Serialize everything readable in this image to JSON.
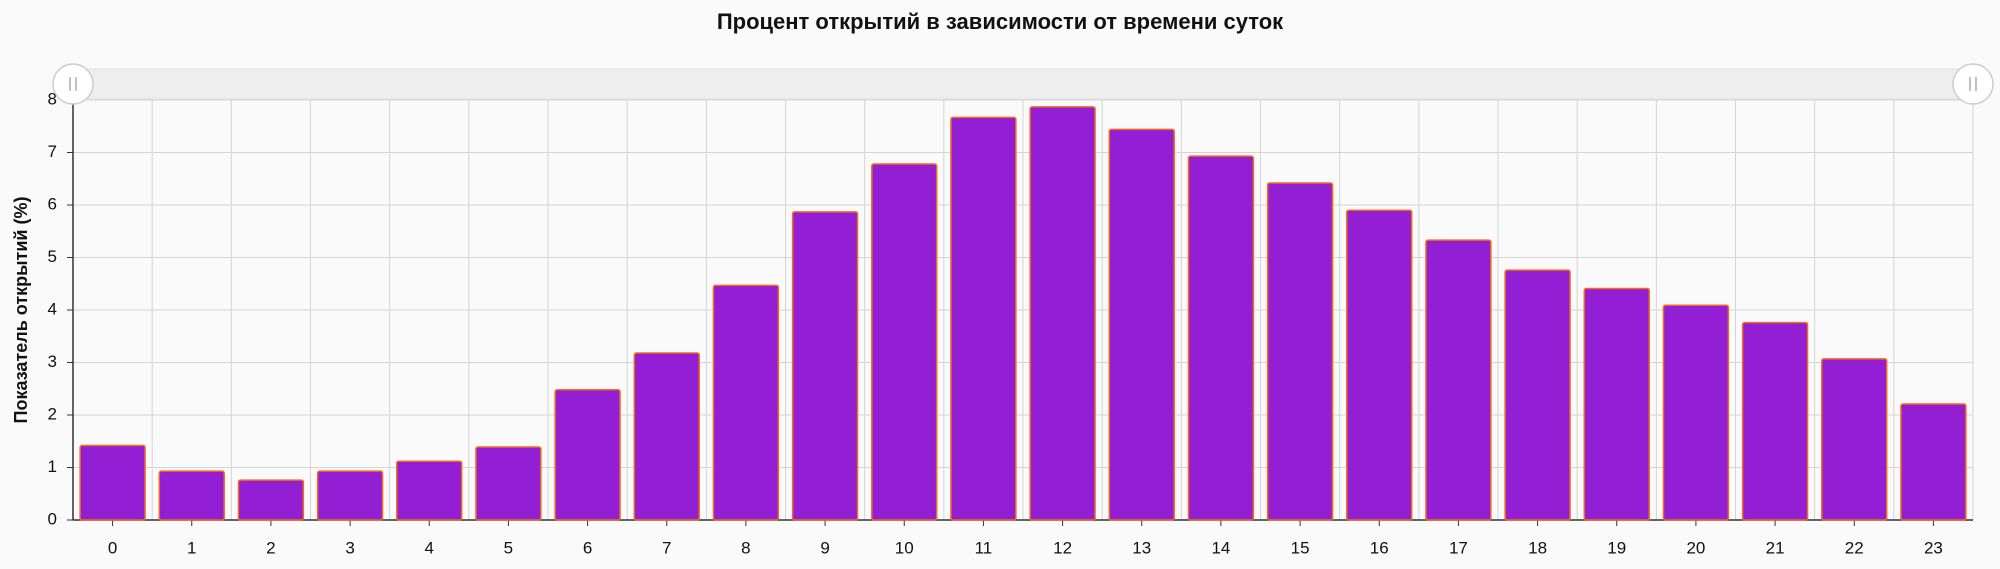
{
  "chart_data": {
    "type": "bar",
    "title": "Процент открытий в зависимости от времени суток",
    "y_label": "Показатель открытий (%)",
    "categories": [
      "0",
      "1",
      "2",
      "3",
      "4",
      "5",
      "6",
      "7",
      "8",
      "9",
      "10",
      "11",
      "12",
      "13",
      "14",
      "15",
      "16",
      "17",
      "18",
      "19",
      "20",
      "21",
      "22",
      "23"
    ],
    "values": [
      1.42,
      0.93,
      0.76,
      0.93,
      1.12,
      1.39,
      2.48,
      3.18,
      4.47,
      5.87,
      6.78,
      7.67,
      7.87,
      7.44,
      6.93,
      6.42,
      5.9,
      5.33,
      4.76,
      4.41,
      4.09,
      3.76,
      3.07,
      2.21
    ],
    "color": "#921fd3",
    "edge_color": "#f26a1b",
    "ylim": [
      0,
      8
    ],
    "yticks": [
      0,
      1,
      2,
      3,
      4,
      5,
      6,
      7,
      8
    ],
    "grid": true
  }
}
